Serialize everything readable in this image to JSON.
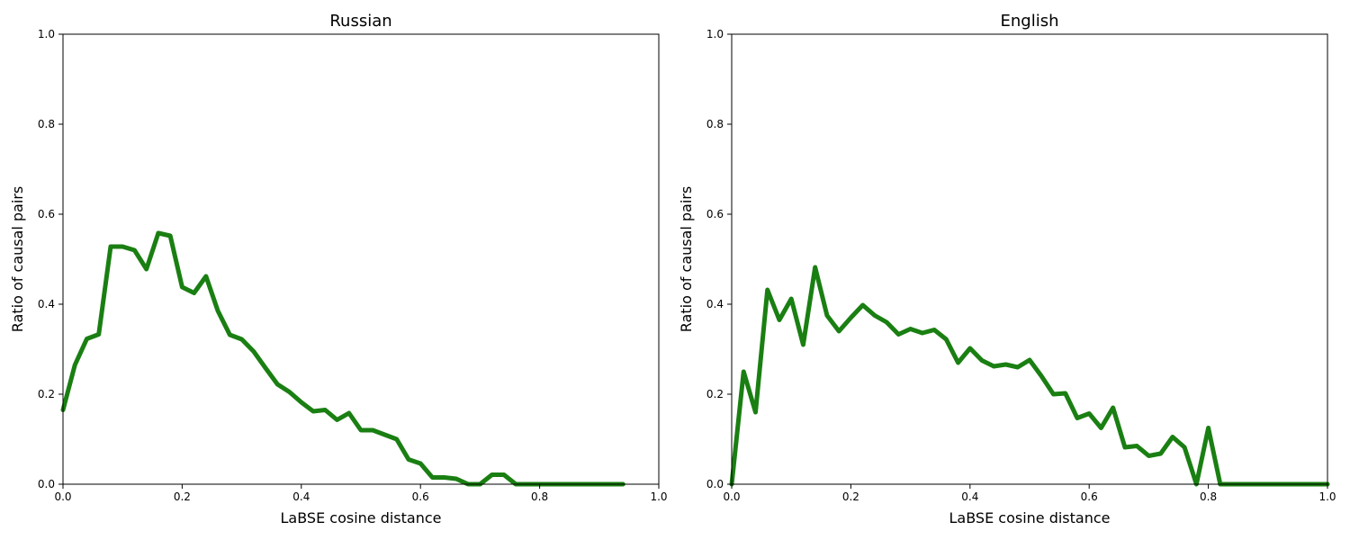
{
  "chart_data": [
    {
      "type": "line",
      "title": "Russian",
      "xlabel": "LaBSE cosine distance",
      "ylabel": "Ratio of causal pairs",
      "xlim": [
        0,
        1
      ],
      "ylim": [
        0,
        1
      ],
      "xticks": [
        "0.0",
        "0.2",
        "0.4",
        "0.6",
        "0.8",
        "1.0"
      ],
      "yticks": [
        "0.0",
        "0.2",
        "0.4",
        "0.6",
        "0.8",
        "1.0"
      ],
      "grid": false,
      "color": "#1a7f12",
      "series": [
        {
          "x": [
            0.0,
            0.02,
            0.04,
            0.06,
            0.08,
            0.1,
            0.12,
            0.14,
            0.16,
            0.18,
            0.2,
            0.22,
            0.24,
            0.26,
            0.28,
            0.3,
            0.32,
            0.34,
            0.36,
            0.38,
            0.4,
            0.42,
            0.44,
            0.46,
            0.48,
            0.5,
            0.52,
            0.54,
            0.56,
            0.58,
            0.6,
            0.62,
            0.64,
            0.66,
            0.68,
            0.7,
            0.72,
            0.74,
            0.76,
            0.78,
            0.8,
            0.82,
            0.84,
            0.86,
            0.88,
            0.9,
            0.92,
            0.94
          ],
          "y": [
            0.165,
            0.265,
            0.323,
            0.333,
            0.528,
            0.528,
            0.52,
            0.478,
            0.558,
            0.552,
            0.438,
            0.425,
            0.462,
            0.385,
            0.332,
            0.322,
            0.295,
            0.258,
            0.222,
            0.205,
            0.182,
            0.162,
            0.165,
            0.143,
            0.158,
            0.12,
            0.12,
            0.11,
            0.1,
            0.055,
            0.046,
            0.015,
            0.015,
            0.012,
            0.0,
            0.0,
            0.021,
            0.021,
            0.0,
            0.0,
            0.0,
            0.0,
            0.0,
            0.0,
            0.0,
            0.0,
            0.0,
            0.0
          ]
        }
      ]
    },
    {
      "type": "line",
      "title": "English",
      "xlabel": "LaBSE cosine distance",
      "ylabel": "Ratio of causal pairs",
      "xlim": [
        0,
        1
      ],
      "ylim": [
        0,
        1
      ],
      "xticks": [
        "0.0",
        "0.2",
        "0.4",
        "0.6",
        "0.8",
        "1.0"
      ],
      "yticks": [
        "0.0",
        "0.2",
        "0.4",
        "0.6",
        "0.8",
        "1.0"
      ],
      "grid": false,
      "color": "#1a7f12",
      "series": [
        {
          "x": [
            0.0,
            0.02,
            0.04,
            0.06,
            0.08,
            0.1,
            0.12,
            0.14,
            0.16,
            0.18,
            0.2,
            0.22,
            0.24,
            0.26,
            0.28,
            0.3,
            0.32,
            0.34,
            0.36,
            0.38,
            0.4,
            0.42,
            0.44,
            0.46,
            0.48,
            0.5,
            0.52,
            0.54,
            0.56,
            0.58,
            0.6,
            0.62,
            0.64,
            0.66,
            0.68,
            0.7,
            0.72,
            0.74,
            0.76,
            0.78,
            0.8,
            0.82,
            0.84,
            0.86,
            0.88,
            0.9,
            0.92,
            0.94,
            0.96,
            0.98,
            1.0
          ],
          "y": [
            0.0,
            0.25,
            0.16,
            0.432,
            0.365,
            0.412,
            0.31,
            0.482,
            0.375,
            0.34,
            0.37,
            0.398,
            0.375,
            0.36,
            0.333,
            0.345,
            0.336,
            0.343,
            0.322,
            0.27,
            0.302,
            0.275,
            0.262,
            0.266,
            0.26,
            0.276,
            0.24,
            0.2,
            0.202,
            0.147,
            0.157,
            0.125,
            0.17,
            0.082,
            0.085,
            0.063,
            0.068,
            0.105,
            0.082,
            0.0,
            0.125,
            0.0,
            0.0,
            0.0,
            0.0,
            0.0,
            0.0,
            0.0,
            0.0,
            0.0,
            0.0
          ]
        }
      ]
    }
  ]
}
